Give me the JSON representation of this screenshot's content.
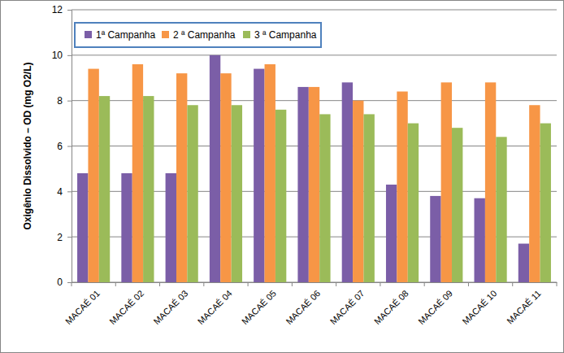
{
  "chart_data": {
    "type": "bar",
    "y_label": "Oxigênio Dissolvido – OD (mg O2/L)",
    "categories": [
      "MACAÉ 01",
      "MACAÉ 02",
      "MACAÉ 03",
      "MACAÉ 04",
      "MACAÉ 05",
      "MACAÉ 06",
      "MACAÉ 07",
      "MACAÉ 08",
      "MACAÉ 09",
      "MACAÉ 10",
      "MACAÉ 11"
    ],
    "series": [
      {
        "name": "1ª Campanha",
        "color": "#7b5ea7",
        "values": [
          4.8,
          4.8,
          4.8,
          10.0,
          9.4,
          8.6,
          8.8,
          4.3,
          3.8,
          3.7,
          1.7
        ]
      },
      {
        "name": "2 ª Campanha",
        "color": "#f79646",
        "values": [
          9.4,
          9.6,
          9.2,
          9.2,
          9.6,
          8.6,
          8.0,
          8.4,
          8.8,
          8.8,
          7.8
        ]
      },
      {
        "name": "3 ª Campanha",
        "color": "#9bbb59",
        "values": [
          8.2,
          8.2,
          7.8,
          7.8,
          7.6,
          7.4,
          7.4,
          7.0,
          6.8,
          6.4,
          7.0
        ]
      }
    ],
    "ylim": [
      0,
      12
    ],
    "yticks": [
      0,
      2,
      4,
      6,
      8,
      10,
      12
    ],
    "grid": true,
    "legend": "top-left"
  }
}
